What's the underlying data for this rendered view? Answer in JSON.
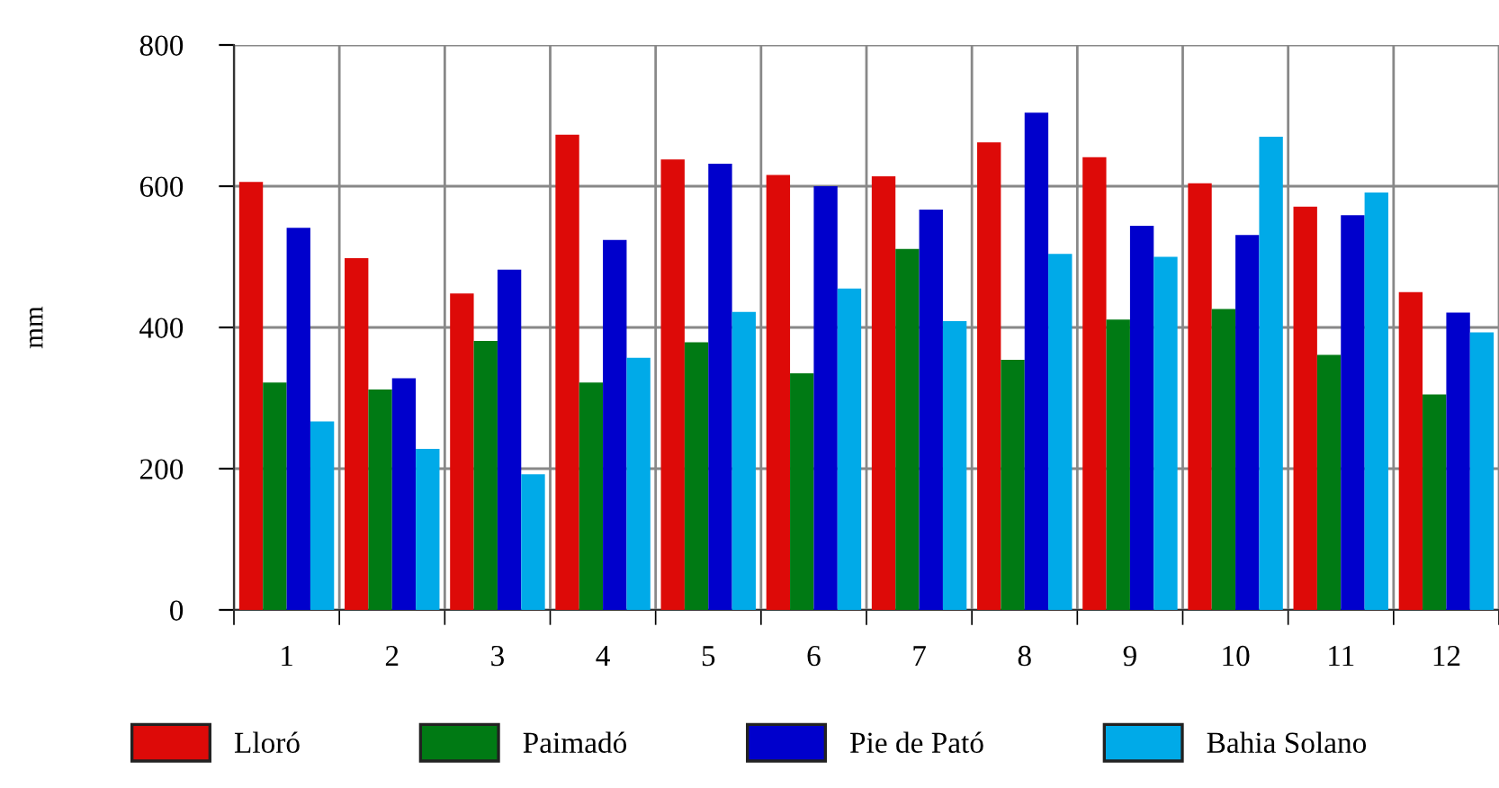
{
  "chart_data": {
    "type": "bar",
    "ylabel": "mm",
    "categories": [
      "1",
      "2",
      "3",
      "4",
      "5",
      "6",
      "7",
      "8",
      "9",
      "10",
      "11",
      "12"
    ],
    "series": [
      {
        "name": "Lloró",
        "color": "#dd0a08",
        "values": [
          606,
          498,
          448,
          673,
          638,
          616,
          614,
          662,
          641,
          604,
          571,
          450
        ]
      },
      {
        "name": "Paimadó",
        "color": "#007a14",
        "values": [
          322,
          312,
          381,
          322,
          379,
          335,
          511,
          354,
          411,
          426,
          361,
          305
        ]
      },
      {
        "name": "Pie de Pató",
        "color": "#0000cc",
        "values": [
          541,
          328,
          482,
          524,
          632,
          600,
          567,
          704,
          544,
          531,
          559,
          421
        ]
      },
      {
        "name": "Bahia Solano",
        "color": "#00aae8",
        "values": [
          267,
          228,
          192,
          357,
          422,
          455,
          409,
          504,
          500,
          670,
          591,
          393
        ]
      }
    ],
    "ylim": [
      0,
      800
    ],
    "yticks": [
      0,
      200,
      400,
      600,
      800
    ],
    "grid": true,
    "legend": "bottom"
  }
}
